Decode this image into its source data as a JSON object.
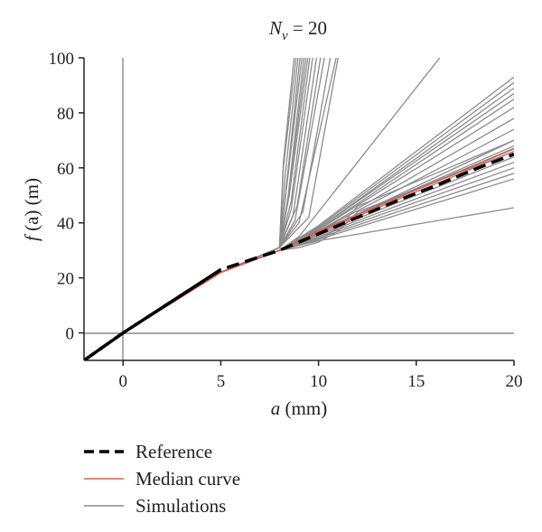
{
  "chart_data": {
    "type": "line",
    "title": "N_v = 20",
    "title_parts": {
      "main": "N",
      "subscript": "v",
      "rest": " = 20"
    },
    "xlabel": "a (mm)",
    "xlabel_parts": {
      "var": "a",
      "unit": " (mm)"
    },
    "ylabel": "f (a) (m)",
    "ylabel_parts": {
      "var": "f",
      "arg": " (a)",
      "unit": " (m)"
    },
    "xlim": [
      -2,
      20
    ],
    "ylim": [
      -10,
      100
    ],
    "xticks": [
      0,
      5,
      10,
      15,
      20
    ],
    "xtick_labels": [
      "0",
      "5",
      "10",
      "15",
      "20"
    ],
    "yticks": [
      0,
      20,
      40,
      60,
      80,
      100
    ],
    "ytick_labels": [
      "0",
      "20",
      "40",
      "60",
      "80",
      "100"
    ],
    "grid": false,
    "reference_lines": {
      "x": 0,
      "y": 0
    },
    "legend_position": "bottom-left",
    "colors": {
      "reference": "#000000",
      "median": "#e05a4f",
      "simulations": "#8c8c8c"
    },
    "series": [
      {
        "name": "Reference",
        "style": "dashed",
        "x": [
          -2,
          0,
          5,
          8,
          10,
          12,
          14,
          16,
          18,
          20
        ],
        "y": [
          -10,
          0,
          23,
          30,
          36,
          42,
          48,
          53.5,
          59.5,
          65
        ]
      },
      {
        "name": "Median curve",
        "style": "solid",
        "x": [
          -2,
          0,
          5,
          8,
          10,
          12,
          14,
          16,
          18,
          20
        ],
        "y": [
          -10,
          0,
          22,
          30,
          37,
          43,
          49,
          55,
          61,
          67
        ]
      },
      {
        "name": "Simulations",
        "style": "solid",
        "groups": [
          {
            "x": [
              -2,
              0,
              5,
              8,
              10,
              20
            ],
            "y": [
              -10,
              0,
              22,
              30,
              37,
              68
            ]
          },
          {
            "x": [
              -2,
              0,
              5,
              8,
              10,
              20
            ],
            "y": [
              -10,
              0,
              22,
              30,
              36.5,
              66
            ]
          },
          {
            "x": [
              -2,
              0,
              5,
              8,
              10,
              20
            ],
            "y": [
              -10,
              0,
              22,
              30,
              36,
              64
            ]
          },
          {
            "x": [
              -2,
              0,
              5,
              8,
              10,
              20
            ],
            "y": [
              -10,
              0,
              22,
              30,
              35.5,
              62
            ]
          },
          {
            "x": [
              -2,
              0,
              5,
              8,
              10,
              20
            ],
            "y": [
              -10,
              0,
              22,
              30,
              35,
              60
            ]
          },
          {
            "x": [
              -2,
              0,
              5,
              8,
              10,
              20
            ],
            "y": [
              -10,
              0,
              22,
              30,
              34.5,
              58
            ]
          },
          {
            "x": [
              -2,
              0,
              5,
              8,
              10,
              20
            ],
            "y": [
              -10,
              0,
              22,
              30,
              34,
              56
            ]
          },
          {
            "x": [
              -2,
              0,
              5,
              8,
              10,
              20
            ],
            "y": [
              -10,
              0,
              22,
              30,
              33.5,
              45.5
            ]
          },
          {
            "x": [
              -2,
              0,
              5,
              8,
              10,
              20
            ],
            "y": [
              -10,
              0,
              22,
              30,
              39,
              93
            ]
          },
          {
            "x": [
              -2,
              0,
              5,
              8,
              10,
              20
            ],
            "y": [
              -10,
              0,
              22,
              30,
              38.5,
              91
            ]
          },
          {
            "x": [
              -2,
              0,
              5,
              8,
              10,
              20
            ],
            "y": [
              -10,
              0,
              22,
              30,
              38,
              89
            ]
          },
          {
            "x": [
              -2,
              0,
              5,
              8,
              10,
              20
            ],
            "y": [
              -10,
              0,
              22,
              30,
              38,
              87
            ]
          },
          {
            "x": [
              -2,
              0,
              5,
              8,
              10,
              20
            ],
            "y": [
              -10,
              0,
              22,
              30,
              37.5,
              85
            ]
          },
          {
            "x": [
              -2,
              0,
              5,
              8,
              10,
              20
            ],
            "y": [
              -10,
              0,
              22,
              30,
              37.5,
              82
            ]
          },
          {
            "x": [
              -2,
              0,
              5,
              8,
              10,
              20
            ],
            "y": [
              -10,
              0,
              22,
              30,
              37,
              78
            ]
          },
          {
            "x": [
              -2,
              0,
              5,
              8,
              10,
              20
            ],
            "y": [
              -10,
              0,
              22,
              30,
              37,
              74
            ]
          },
          {
            "x": [
              -2,
              0,
              5,
              8,
              10,
              20
            ],
            "y": [
              -10,
              0,
              22,
              30,
              36.5,
              70
            ]
          },
          {
            "x": [
              -2,
              0,
              5,
              8,
              9,
              16.2
            ],
            "y": [
              -10,
              0,
              22,
              30,
              35,
              100
            ]
          },
          {
            "x": [
              -2,
              0,
              5,
              8,
              9.5,
              11.0
            ],
            "y": [
              -10,
              0,
              22,
              31,
              42,
              100
            ]
          },
          {
            "x": [
              -2,
              0,
              5,
              8,
              9.0,
              10.9
            ],
            "y": [
              -10,
              0,
              22,
              31,
              40,
              100
            ]
          },
          {
            "x": [
              -2,
              0,
              5,
              8,
              9.2,
              10.6
            ],
            "y": [
              -10,
              0,
              22,
              31,
              44,
              100
            ]
          },
          {
            "x": [
              -2,
              0,
              5,
              8,
              8.8,
              10.3
            ],
            "y": [
              -10,
              0,
              22,
              31,
              41,
              100
            ]
          },
          {
            "x": [
              -2,
              0,
              5,
              8,
              8.9,
              10.1
            ],
            "y": [
              -10,
              0,
              22,
              31,
              46,
              100
            ]
          },
          {
            "x": [
              -2,
              0,
              5,
              8,
              8.7,
              9.9
            ],
            "y": [
              -10,
              0,
              22,
              31,
              43,
              100
            ]
          },
          {
            "x": [
              -2,
              0,
              5,
              8,
              8.6,
              9.7
            ],
            "y": [
              -10,
              0,
              22,
              31,
              45,
              100
            ]
          },
          {
            "x": [
              -2,
              0,
              5,
              8,
              8.6,
              9.55
            ],
            "y": [
              -10,
              0,
              22,
              31,
              48,
              100
            ]
          },
          {
            "x": [
              -2,
              0,
              5,
              8,
              8.5,
              9.45
            ],
            "y": [
              -10,
              0,
              22,
              31,
              50,
              100
            ]
          },
          {
            "x": [
              -2,
              0,
              5,
              8,
              8.5,
              9.35
            ],
            "y": [
              -10,
              0,
              22,
              31,
              52,
              100
            ]
          },
          {
            "x": [
              -2,
              0,
              5,
              8,
              8.4,
              9.25
            ],
            "y": [
              -10,
              0,
              22,
              31,
              47,
              100
            ]
          },
          {
            "x": [
              -2,
              0,
              5,
              8,
              8.4,
              9.15
            ],
            "y": [
              -10,
              0,
              22,
              31,
              55,
              100
            ]
          },
          {
            "x": [
              -2,
              0,
              5,
              8,
              8.3,
              9.05
            ],
            "y": [
              -10,
              0,
              22,
              31,
              50,
              100
            ]
          },
          {
            "x": [
              -2,
              0,
              5,
              8,
              8.3,
              8.95
            ],
            "y": [
              -10,
              0,
              22,
              31,
              58,
              100
            ]
          },
          {
            "x": [
              -2,
              0,
              5,
              8,
              8.2,
              8.85
            ],
            "y": [
              -10,
              0,
              22,
              31,
              60,
              100
            ]
          },
          {
            "x": [
              -2,
              0,
              5,
              8,
              8.2,
              8.75
            ],
            "y": [
              -10,
              0,
              22,
              31,
              62,
              100
            ]
          },
          {
            "x": [
              -2,
              0,
              5,
              8,
              9.0,
              10.0,
              11.0,
              12.0,
              20
            ],
            "y": [
              -10,
              0,
              22,
              30,
              32,
              34,
              38,
              46,
              70
            ]
          },
          {
            "x": [
              -2,
              0,
              5,
              8,
              9.0,
              10.0,
              11.0,
              12.0,
              20
            ],
            "y": [
              -10,
              0,
              22,
              30,
              31,
              33,
              37,
              44,
              66
            ]
          }
        ]
      }
    ]
  },
  "legend": {
    "items": [
      {
        "label": "Reference",
        "style": "dashed",
        "color": "#000000"
      },
      {
        "label": "Median curve",
        "style": "solid",
        "color": "#e05a4f"
      },
      {
        "label": "Simulations",
        "style": "solid",
        "color": "#8c8c8c"
      }
    ]
  }
}
